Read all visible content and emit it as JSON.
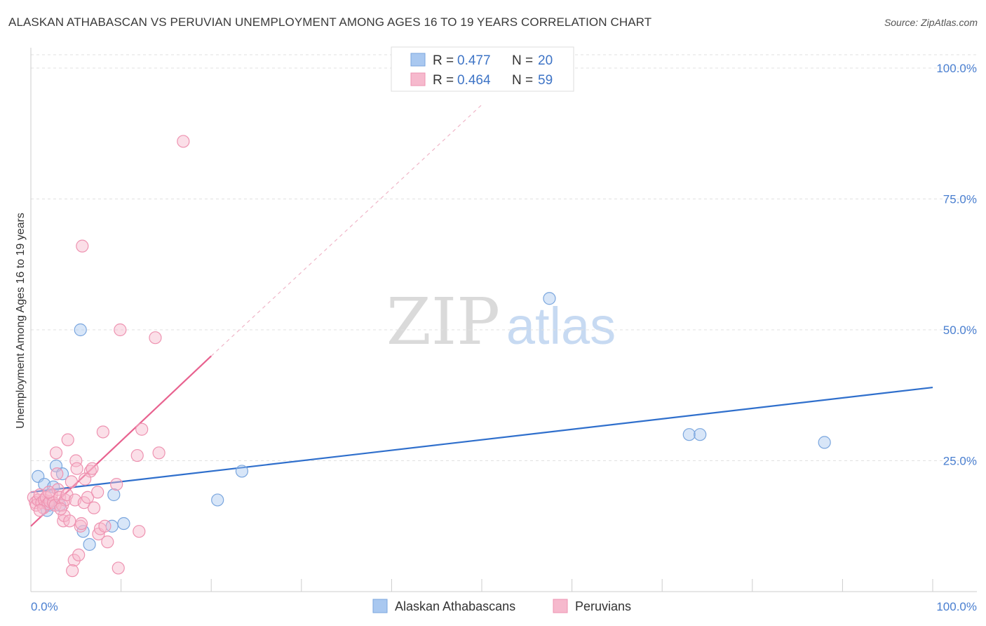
{
  "title": "ALASKAN ATHABASCAN VS PERUVIAN UNEMPLOYMENT AMONG AGES 16 TO 19 YEARS CORRELATION CHART",
  "source": "Source: ZipAtlas.com",
  "watermark": {
    "zip": "ZIP",
    "atlas": "atlas"
  },
  "colors": {
    "blue_fill": "#a9c8f0",
    "blue_stroke": "#7aa6de",
    "blue_line": "#2f6fcc",
    "pink_fill": "#f6b9cd",
    "pink_stroke": "#ee93b1",
    "pink_line": "#e8628f",
    "tick_text": "#4a7fd0"
  },
  "chart_data": {
    "type": "scatter",
    "title": "ALASKAN ATHABASCAN VS PERUVIAN UNEMPLOYMENT AMONG AGES 16 TO 19 YEARS CORRELATION CHART",
    "xlabel": "",
    "ylabel": "Unemployment Among Ages 16 to 19 years",
    "xlim": [
      0,
      100
    ],
    "ylim": [
      0,
      100
    ],
    "x_tick_labels": [
      "0.0%",
      "100.0%"
    ],
    "y_ticks": [
      25,
      50,
      75,
      100
    ],
    "y_tick_labels": [
      "25.0%",
      "50.0%",
      "75.0%",
      "100.0%"
    ],
    "grid": true,
    "legend": [
      {
        "r_label": "R =",
        "r_value": "0.477",
        "n_label": "N =",
        "n_value": "20"
      },
      {
        "r_label": "R =",
        "r_value": "0.464",
        "n_label": "N =",
        "n_value": "59"
      }
    ],
    "series": [
      {
        "name": "Alaskan Athabascans",
        "color": "blue",
        "points": [
          [
            0.8,
            22.0
          ],
          [
            1.5,
            20.5
          ],
          [
            2.5,
            20.0
          ],
          [
            2.0,
            16.5
          ],
          [
            1.8,
            15.5
          ],
          [
            2.8,
            24.0
          ],
          [
            3.2,
            16.5
          ],
          [
            3.5,
            22.5
          ],
          [
            5.5,
            50.0
          ],
          [
            5.8,
            11.5
          ],
          [
            6.5,
            9.0
          ],
          [
            9.0,
            12.5
          ],
          [
            9.2,
            18.5
          ],
          [
            10.3,
            13.0
          ],
          [
            20.7,
            17.5
          ],
          [
            23.4,
            23.0
          ],
          [
            57.5,
            56.0
          ],
          [
            73.0,
            30.0
          ],
          [
            74.2,
            30.0
          ],
          [
            88.0,
            28.5
          ]
        ],
        "trend": [
          [
            0,
            19.0
          ],
          [
            100,
            39.0
          ]
        ]
      },
      {
        "name": "Peruvians",
        "color": "pink",
        "points": [
          [
            0.3,
            18.0
          ],
          [
            0.5,
            17.0
          ],
          [
            0.6,
            16.5
          ],
          [
            0.8,
            17.5
          ],
          [
            1.0,
            18.5
          ],
          [
            1.2,
            17.0
          ],
          [
            1.4,
            16.0
          ],
          [
            1.5,
            17.5
          ],
          [
            1.7,
            18.0
          ],
          [
            1.9,
            16.8
          ],
          [
            2.1,
            17.2
          ],
          [
            2.3,
            18.5
          ],
          [
            2.5,
            17.0
          ],
          [
            2.7,
            16.5
          ],
          [
            2.8,
            26.5
          ],
          [
            2.9,
            22.5
          ],
          [
            3.0,
            19.5
          ],
          [
            3.2,
            18.0
          ],
          [
            3.5,
            16.5
          ],
          [
            3.6,
            13.5
          ],
          [
            3.7,
            14.5
          ],
          [
            3.8,
            17.5
          ],
          [
            4.0,
            18.5
          ],
          [
            4.1,
            29.0
          ],
          [
            4.3,
            13.5
          ],
          [
            4.5,
            21.0
          ],
          [
            4.8,
            6.0
          ],
          [
            4.6,
            4.0
          ],
          [
            4.9,
            17.5
          ],
          [
            5.0,
            25.0
          ],
          [
            5.1,
            23.5
          ],
          [
            5.3,
            7.0
          ],
          [
            5.5,
            12.5
          ],
          [
            5.6,
            13.0
          ],
          [
            5.7,
            66.0
          ],
          [
            5.9,
            17.0
          ],
          [
            6.3,
            18.0
          ],
          [
            6.6,
            23.0
          ],
          [
            6.8,
            23.5
          ],
          [
            7.0,
            16.0
          ],
          [
            7.5,
            11.0
          ],
          [
            7.7,
            12.0
          ],
          [
            7.4,
            19.0
          ],
          [
            8.2,
            12.5
          ],
          [
            8.5,
            9.5
          ],
          [
            8.0,
            30.5
          ],
          [
            9.5,
            20.5
          ],
          [
            9.7,
            4.5
          ],
          [
            9.9,
            50.0
          ],
          [
            11.8,
            26.0
          ],
          [
            12.0,
            11.5
          ],
          [
            12.3,
            31.0
          ],
          [
            13.8,
            48.5
          ],
          [
            14.2,
            26.5
          ],
          [
            16.9,
            86.0
          ],
          [
            1.0,
            15.5
          ],
          [
            2.0,
            19.0
          ],
          [
            6.0,
            21.5
          ],
          [
            3.3,
            15.8
          ]
        ],
        "trend": [
          [
            0,
            12.5
          ],
          [
            20,
            45.0
          ]
        ],
        "trend_dashed": [
          [
            20,
            45.0
          ],
          [
            50,
            93.0
          ]
        ]
      }
    ]
  },
  "bottom_legend": [
    {
      "label": "Alaskan Athabascans",
      "color": "blue"
    },
    {
      "label": "Peruvians",
      "color": "pink"
    }
  ]
}
